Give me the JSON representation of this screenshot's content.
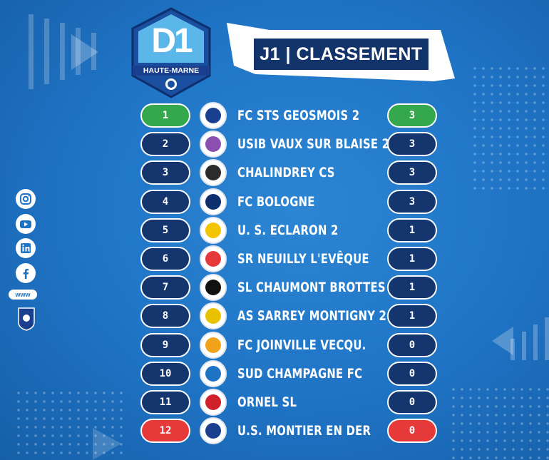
{
  "logo": {
    "title": "D1",
    "subtitle": "HAUTE-MARNE"
  },
  "banner": {
    "title": "J1 | CLASSEMENT"
  },
  "social": {
    "icons": [
      "instagram-icon",
      "youtube-icon",
      "linkedin-icon",
      "facebook-icon"
    ],
    "www": "www"
  },
  "colors": {
    "background": "#1f73c4",
    "pill": "#14356e",
    "first": "#35a84d",
    "last": "#e63a3a"
  },
  "standings": [
    {
      "rank": "1",
      "team": "FC STS GEOSMOIS 2",
      "points": "3"
    },
    {
      "rank": "2",
      "team": "USIB VAUX SUR BLAISE 2",
      "points": "3"
    },
    {
      "rank": "3",
      "team": "CHALINDREY CS",
      "points": "3"
    },
    {
      "rank": "4",
      "team": "FC BOLOGNE",
      "points": "3"
    },
    {
      "rank": "5",
      "team": "U. S. ECLARON 2",
      "points": "1"
    },
    {
      "rank": "6",
      "team": "SR NEUILLY L'EVÊQUE",
      "points": "1"
    },
    {
      "rank": "7",
      "team": "SL CHAUMONT BROTTES",
      "points": "1"
    },
    {
      "rank": "8",
      "team": "AS SARREY MONTIGNY 2",
      "points": "1"
    },
    {
      "rank": "9",
      "team": "FC JOINVILLE VECQU.",
      "points": "0"
    },
    {
      "rank": "10",
      "team": "SUD CHAMPAGNE FC",
      "points": "0"
    },
    {
      "rank": "11",
      "team": "ORNEL SL",
      "points": "0"
    },
    {
      "rank": "12",
      "team": "U.S. MONTIER EN DER",
      "points": "0"
    }
  ]
}
